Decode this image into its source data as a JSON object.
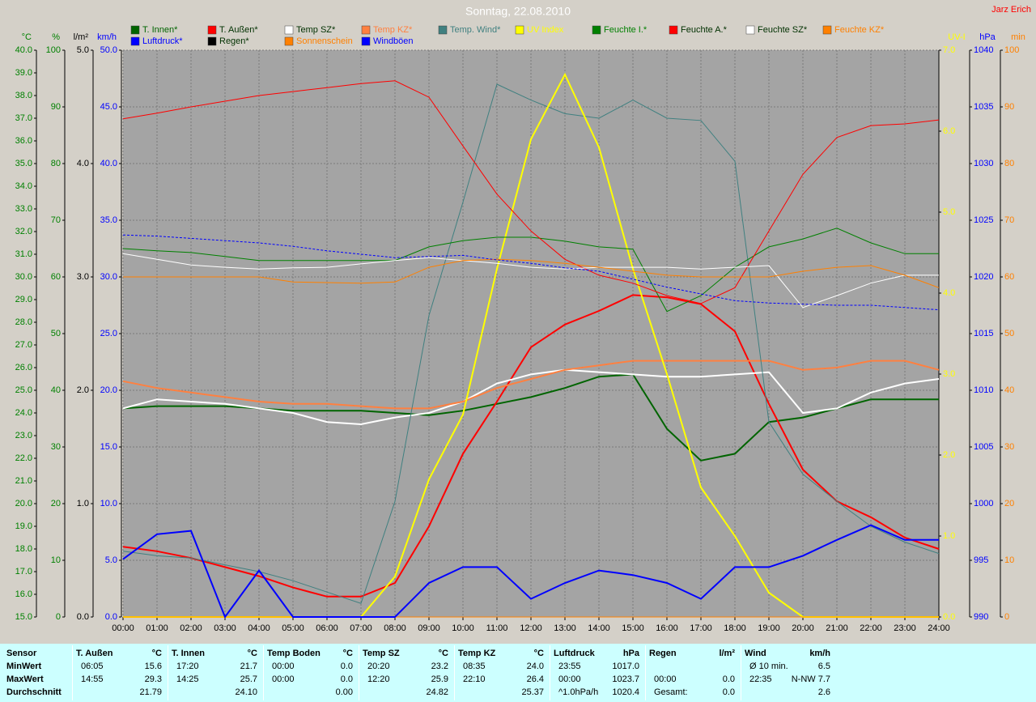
{
  "chart_data": {
    "type": "line",
    "title": "Sonntag, 22.08.2010",
    "author": "Jarz Erich",
    "xlim": [
      0,
      24
    ],
    "xticks": [
      {
        "value": 0,
        "label": "00:00"
      },
      {
        "value": 1,
        "label": "01:00"
      },
      {
        "value": 2,
        "label": "02:00"
      },
      {
        "value": 3,
        "label": "03:00"
      },
      {
        "value": 4,
        "label": "04:00"
      },
      {
        "value": 5,
        "label": "05:00"
      },
      {
        "value": 6,
        "label": "06:00"
      },
      {
        "value": 7,
        "label": "07:00"
      },
      {
        "value": 8,
        "label": "08:00"
      },
      {
        "value": 9,
        "label": "09:00"
      },
      {
        "value": 10,
        "label": "10:00"
      },
      {
        "value": 11,
        "label": "11:00"
      },
      {
        "value": 12,
        "label": "12:00"
      },
      {
        "value": 13,
        "label": "13:00"
      },
      {
        "value": 14,
        "label": "14:00"
      },
      {
        "value": 15,
        "label": "15:00"
      },
      {
        "value": 16,
        "label": "16:00"
      },
      {
        "value": 17,
        "label": "17:00"
      },
      {
        "value": 18,
        "label": "18:00"
      },
      {
        "value": 19,
        "label": "19:00"
      },
      {
        "value": 20,
        "label": "20:00"
      },
      {
        "value": 21,
        "label": "21:00"
      },
      {
        "value": 22,
        "label": "22:00"
      },
      {
        "value": 23,
        "label": "23:00"
      },
      {
        "value": 24,
        "label": "24:00"
      }
    ],
    "x": [
      0,
      1,
      2,
      3,
      4,
      5,
      6,
      7,
      8,
      9,
      10,
      11,
      12,
      13,
      14,
      15,
      16,
      17,
      18,
      19,
      20,
      21,
      22,
      23,
      24
    ],
    "grid": true,
    "axes": {
      "temp": {
        "label": "°C",
        "side": "left",
        "color": "#008000",
        "lim": [
          15,
          40
        ],
        "ticks": [
          {
            "value": 15,
            "label": "15.0"
          },
          {
            "value": 16,
            "label": "16.0"
          },
          {
            "value": 17,
            "label": "17.0"
          },
          {
            "value": 18,
            "label": "18.0"
          },
          {
            "value": 19,
            "label": "19.0"
          },
          {
            "value": 20,
            "label": "20.0"
          },
          {
            "value": 21,
            "label": "21.0"
          },
          {
            "value": 22,
            "label": "22.0"
          },
          {
            "value": 23,
            "label": "23.0"
          },
          {
            "value": 24,
            "label": "24.0"
          },
          {
            "value": 25,
            "label": "25.0"
          },
          {
            "value": 26,
            "label": "26.0"
          },
          {
            "value": 27,
            "label": "27.0"
          },
          {
            "value": 28,
            "label": "28.0"
          },
          {
            "value": 29,
            "label": "29.0"
          },
          {
            "value": 30,
            "label": "30.0"
          },
          {
            "value": 31,
            "label": "31.0"
          },
          {
            "value": 32,
            "label": "32.0"
          },
          {
            "value": 33,
            "label": "33.0"
          },
          {
            "value": 34,
            "label": "34.0"
          },
          {
            "value": 35,
            "label": "35.0"
          },
          {
            "value": 36,
            "label": "36.0"
          },
          {
            "value": 37,
            "label": "37.0"
          },
          {
            "value": 38,
            "label": "38.0"
          },
          {
            "value": 39,
            "label": "39.0"
          },
          {
            "value": 40,
            "label": "40.0"
          }
        ]
      },
      "hum": {
        "label": "%",
        "side": "left",
        "color": "#008000",
        "lim": [
          0,
          100
        ],
        "ticks": [
          0,
          10,
          20,
          30,
          40,
          50,
          60,
          70,
          80,
          90,
          100
        ]
      },
      "rain": {
        "label": "l/m²",
        "side": "left",
        "color": "#000000",
        "lim": [
          0,
          5
        ],
        "ticks": [
          {
            "value": 0,
            "label": "0.0"
          },
          {
            "value": 1,
            "label": "1.0"
          },
          {
            "value": 2,
            "label": "2.0"
          },
          {
            "value": 3,
            "label": "3.0"
          },
          {
            "value": 4,
            "label": "4.0"
          },
          {
            "value": 5,
            "label": "5.0"
          }
        ]
      },
      "kmh": {
        "label": "km/h",
        "side": "left",
        "color": "#0000ff",
        "lim": [
          0,
          50
        ],
        "ticks": [
          {
            "value": 0,
            "label": "0.0"
          },
          {
            "value": 5,
            "label": "5.0"
          },
          {
            "value": 10,
            "label": "10.0"
          },
          {
            "value": 15,
            "label": "15.0"
          },
          {
            "value": 20,
            "label": "20.0"
          },
          {
            "value": 25,
            "label": "25.0"
          },
          {
            "value": 30,
            "label": "30.0"
          },
          {
            "value": 35,
            "label": "35.0"
          },
          {
            "value": 40,
            "label": "40.0"
          },
          {
            "value": 45,
            "label": "45.0"
          },
          {
            "value": 50,
            "label": "50.0"
          }
        ]
      },
      "uv": {
        "label": "UV-I",
        "side": "right",
        "color": "#ffff00",
        "lim": [
          0,
          7
        ],
        "ticks": [
          {
            "value": 0,
            "label": "0.0"
          },
          {
            "value": 1,
            "label": "1.0"
          },
          {
            "value": 2,
            "label": "2.0"
          },
          {
            "value": 3,
            "label": "3.0"
          },
          {
            "value": 4,
            "label": "4.0"
          },
          {
            "value": 5,
            "label": "5.0"
          },
          {
            "value": 6,
            "label": "6.0"
          },
          {
            "value": 7,
            "label": "7.0"
          }
        ]
      },
      "hpa": {
        "label": "hPa",
        "side": "right",
        "color": "#0000ff",
        "lim": [
          990,
          1040
        ],
        "ticks": [
          990,
          995,
          1000,
          1005,
          1010,
          1015,
          1020,
          1025,
          1030,
          1035,
          1040
        ]
      },
      "min": {
        "label": "min",
        "side": "right",
        "color": "#ff8000",
        "lim": [
          0,
          100
        ],
        "ticks": [
          0,
          10,
          20,
          30,
          40,
          50,
          60,
          70,
          80,
          90,
          100
        ]
      }
    },
    "series": [
      {
        "name": "T. Innen*",
        "color": "#006400",
        "axis": "temp",
        "width": 2,
        "values": [
          24.2,
          24.3,
          24.3,
          24.3,
          24.2,
          24.1,
          24.1,
          24.1,
          24.0,
          23.9,
          24.1,
          24.4,
          24.7,
          25.1,
          25.6,
          25.7,
          23.3,
          21.9,
          22.2,
          23.6,
          23.8,
          24.2,
          24.6,
          24.6,
          24.6
        ]
      },
      {
        "name": "T. Außen*",
        "color": "#ff0000",
        "axis": "temp",
        "width": 2,
        "values": [
          18.1,
          17.9,
          17.6,
          17.2,
          16.8,
          16.3,
          15.9,
          15.9,
          16.5,
          19.0,
          22.2,
          24.5,
          26.9,
          27.9,
          28.5,
          29.2,
          29.1,
          28.8,
          27.6,
          24.4,
          21.5,
          20.1,
          19.4,
          18.5,
          18.0
        ]
      },
      {
        "name": "Temp SZ*",
        "color": "#ffffff",
        "axis": "temp",
        "width": 2,
        "values": [
          24.2,
          24.6,
          24.5,
          24.4,
          24.2,
          24.0,
          23.6,
          23.5,
          23.8,
          24.0,
          24.5,
          25.3,
          25.7,
          25.9,
          25.8,
          25.7,
          25.6,
          25.6,
          25.7,
          25.8,
          24.0,
          24.2,
          24.9,
          25.3,
          25.5
        ]
      },
      {
        "name": "Temp KZ*",
        "color": "#ff8040",
        "axis": "temp",
        "width": 2,
        "values": [
          25.4,
          25.1,
          24.9,
          24.7,
          24.5,
          24.4,
          24.4,
          24.3,
          24.2,
          24.2,
          24.5,
          25.1,
          25.5,
          25.9,
          26.1,
          26.3,
          26.3,
          26.3,
          26.3,
          26.3,
          25.9,
          26.0,
          26.3,
          26.3,
          25.9
        ]
      },
      {
        "name": "Temp. Wind*",
        "color": "#408080",
        "axis": "temp",
        "width": 1,
        "values": [
          17.9,
          17.7,
          17.6,
          17.3,
          17.0,
          16.6,
          16.1,
          15.6,
          20.1,
          28.3,
          33.3,
          38.5,
          37.8,
          37.2,
          37.0,
          37.8,
          37.0,
          36.9,
          35.1,
          23.6,
          21.3,
          20.1,
          19.0,
          18.3,
          17.8
        ]
      },
      {
        "name": "UV Index",
        "color": "#ffff00",
        "axis": "uv",
        "width": 2,
        "values": [
          0,
          0,
          0,
          0,
          0,
          0,
          0,
          0,
          0.5,
          1.7,
          2.5,
          4.3,
          5.9,
          6.7,
          5.8,
          4.3,
          3.0,
          1.6,
          1.0,
          0.3,
          0,
          0,
          0,
          0,
          0
        ]
      },
      {
        "name": "Feuchte I.*",
        "color": "#008000",
        "axis": "hum",
        "width": 1,
        "values": [
          65.0,
          64.6,
          64.3,
          63.6,
          62.9,
          62.9,
          62.9,
          62.9,
          62.9,
          65.3,
          66.4,
          67.0,
          67.0,
          66.3,
          65.3,
          64.9,
          53.9,
          56.7,
          61.7,
          65.3,
          66.7,
          68.6,
          66.0,
          64.1,
          64.1
        ]
      },
      {
        "name": "Feuchte A.*",
        "color": "#ff0000",
        "axis": "hum",
        "width": 1,
        "values": [
          87.9,
          88.9,
          90.0,
          91.0,
          92.0,
          92.7,
          93.4,
          94.1,
          94.6,
          91.7,
          83.1,
          74.6,
          68.1,
          63.1,
          60.3,
          58.9,
          56.7,
          55.3,
          58.1,
          68.1,
          78.1,
          84.6,
          86.7,
          87.0,
          87.7
        ]
      },
      {
        "name": "Feuchte SZ*",
        "color": "#ffffff",
        "axis": "hum",
        "width": 1,
        "values": [
          64.1,
          63.1,
          62.1,
          61.7,
          61.4,
          61.6,
          61.7,
          62.3,
          62.9,
          63.4,
          62.9,
          62.4,
          61.7,
          61.4,
          61.7,
          61.7,
          61.7,
          61.4,
          61.7,
          62.0,
          54.6,
          56.7,
          58.9,
          60.3,
          60.3
        ]
      },
      {
        "name": "Feuchte KZ*",
        "color": "#ff8000",
        "axis": "hum",
        "width": 1,
        "values": [
          60.0,
          60.0,
          60.0,
          60.0,
          60.0,
          59.1,
          59.0,
          58.9,
          59.1,
          61.7,
          62.9,
          63.1,
          62.9,
          62.4,
          61.7,
          61.0,
          60.3,
          60.0,
          60.0,
          60.0,
          61.0,
          61.7,
          62.0,
          60.3,
          58.1
        ]
      },
      {
        "name": "Luftdruck*",
        "color": "#0000ff",
        "axis": "hpa",
        "width": 1,
        "dash": true,
        "values": [
          1023.7,
          1023.6,
          1023.4,
          1023.2,
          1023.0,
          1022.7,
          1022.3,
          1022.0,
          1021.7,
          1021.8,
          1021.9,
          1021.5,
          1021.2,
          1020.8,
          1020.5,
          1019.8,
          1019.1,
          1018.5,
          1017.9,
          1017.7,
          1017.6,
          1017.5,
          1017.5,
          1017.3,
          1017.1
        ]
      },
      {
        "name": "Regen*",
        "color": "#000000",
        "axis": "rain",
        "width": 1,
        "values": [
          0,
          0,
          0,
          0,
          0,
          0,
          0,
          0,
          0,
          0,
          0,
          0,
          0,
          0,
          0,
          0,
          0,
          0,
          0,
          0,
          0,
          0,
          0,
          0,
          0
        ]
      },
      {
        "name": "Sonnenschein",
        "color": "#ff8000",
        "axis": "min",
        "width": 1,
        "values": [
          0,
          0,
          0,
          0,
          0,
          0,
          0,
          0,
          0,
          0,
          0,
          0,
          0,
          0,
          0,
          0,
          0,
          0,
          0,
          0,
          0,
          0,
          0,
          0,
          0
        ]
      },
      {
        "name": "Windböen",
        "color": "#0000ff",
        "axis": "kmh",
        "width": 2,
        "values": [
          5.1,
          7.3,
          7.6,
          0,
          4.1,
          0,
          0,
          0,
          0,
          3.0,
          4.4,
          4.4,
          1.6,
          3.0,
          4.1,
          3.7,
          3.0,
          1.6,
          4.4,
          4.4,
          5.4,
          6.8,
          8.1,
          6.8,
          6.8
        ]
      }
    ]
  },
  "table": {
    "row_labels": [
      "Sensor",
      "MinWert",
      "MaxWert",
      "Durchschnitt"
    ],
    "columns": [
      {
        "header": "T. Außen",
        "unit": "°C",
        "rows": [
          [
            "06:05",
            "15.6"
          ],
          [
            "14:55",
            "29.3"
          ],
          [
            null,
            "21.79"
          ]
        ]
      },
      {
        "header": "T. Innen",
        "unit": "°C",
        "rows": [
          [
            "17:20",
            "21.7"
          ],
          [
            "14:25",
            "25.7"
          ],
          [
            null,
            "24.10"
          ]
        ]
      },
      {
        "header": "Temp Boden",
        "unit": "°C",
        "rows": [
          [
            "00:00",
            "0.0"
          ],
          [
            "00:00",
            "0.0"
          ],
          [
            null,
            "0.00"
          ]
        ]
      },
      {
        "header": "Temp SZ",
        "unit": "°C",
        "rows": [
          [
            "20:20",
            "23.2"
          ],
          [
            "12:20",
            "25.9"
          ],
          [
            null,
            "24.82"
          ]
        ]
      },
      {
        "header": "Temp KZ",
        "unit": "°C",
        "rows": [
          [
            "08:35",
            "24.0"
          ],
          [
            "22:10",
            "26.4"
          ],
          [
            null,
            "25.37"
          ]
        ]
      },
      {
        "header": "Luftdruck",
        "unit": "hPa",
        "rows": [
          [
            "23:55",
            "1017.0"
          ],
          [
            "00:00",
            "1023.7"
          ],
          [
            "^1.0hPa/h",
            "1020.4"
          ]
        ]
      },
      {
        "header": "Regen",
        "unit": "l/m²",
        "rows": [
          [
            null,
            null
          ],
          [
            "00:00",
            "0.0"
          ],
          [
            "Gesamt:",
            "0.0"
          ]
        ]
      },
      {
        "header": "Wind",
        "unit": "km/h",
        "rows": [
          [
            "Ø 10 min.",
            "6.5"
          ],
          [
            "22:35",
            "N-NW 7.7"
          ],
          [
            null,
            "2.6"
          ]
        ]
      }
    ]
  }
}
